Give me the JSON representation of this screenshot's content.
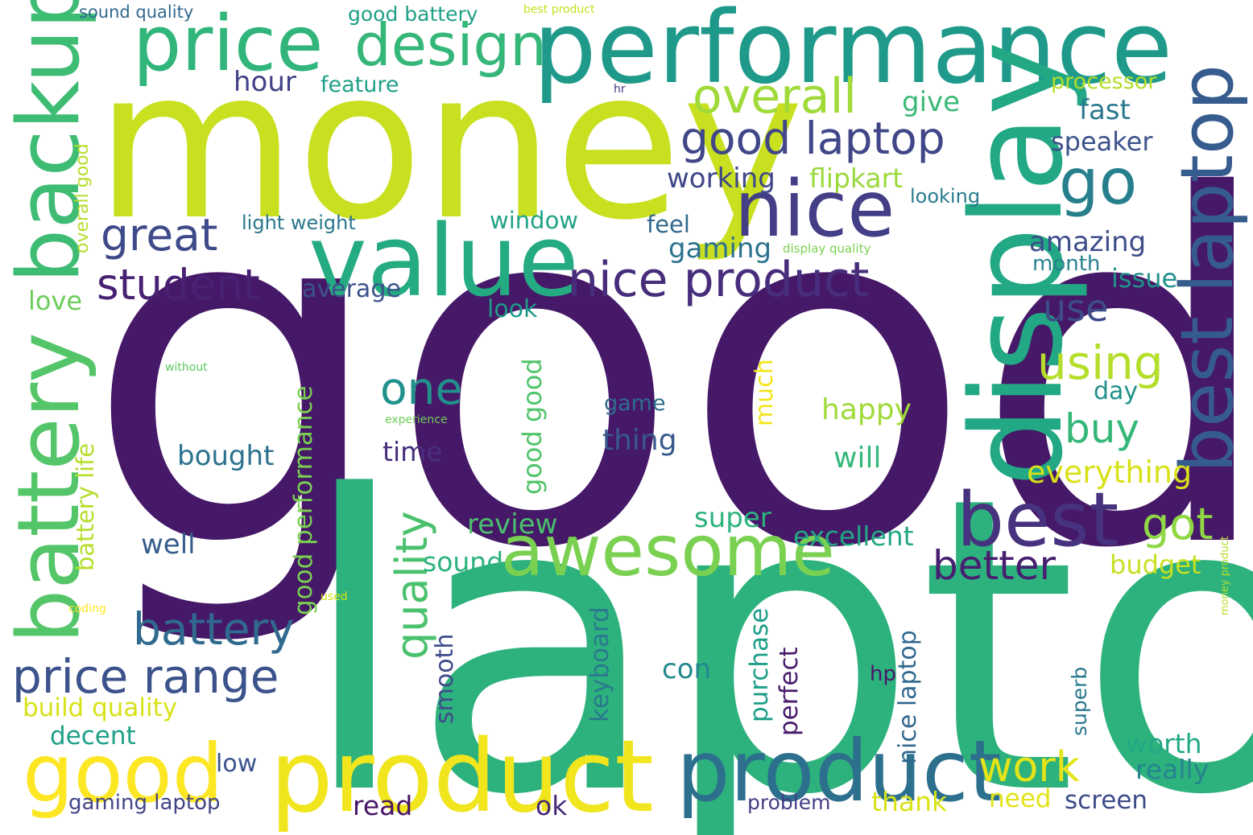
{
  "words": [
    {
      "id": "good",
      "text": "good",
      "color": "#461868",
      "vertical": false
    },
    {
      "id": "laptop",
      "text": "laptop",
      "color": "#2db27d",
      "vertical": false
    },
    {
      "id": "money",
      "text": "money",
      "color": "#c8e020",
      "vertical": false
    },
    {
      "id": "performance",
      "text": "performance",
      "color": "#1f9a8a",
      "vertical": false
    },
    {
      "id": "display",
      "text": "display",
      "color": "#22a884",
      "vertical": true
    },
    {
      "id": "value",
      "text": "value",
      "color": "#25ab82",
      "vertical": false
    },
    {
      "id": "product-large",
      "text": "product",
      "color": "#2d708e",
      "vertical": false
    },
    {
      "id": "product-yellow",
      "text": "product",
      "color": "#f1e51d",
      "vertical": false
    },
    {
      "id": "price",
      "text": "price",
      "color": "#31b57b",
      "vertical": false
    },
    {
      "id": "design",
      "text": "design",
      "color": "#35b779",
      "vertical": false
    },
    {
      "id": "backup",
      "text": "backup",
      "color": "#3fbc73",
      "vertical": true
    },
    {
      "id": "battery-vertical",
      "text": "battery",
      "color": "#54c568",
      "vertical": true
    },
    {
      "id": "best-laptop",
      "text": "best laptop",
      "color": "#365c8d",
      "vertical": true
    },
    {
      "id": "nice",
      "text": "nice",
      "color": "#433e85",
      "vertical": false
    },
    {
      "id": "awesome",
      "text": "awesome",
      "color": "#7ad151",
      "vertical": false
    },
    {
      "id": "best",
      "text": "best",
      "color": "#46327e",
      "vertical": false
    },
    {
      "id": "good-yellow",
      "text": "good",
      "color": "#fde725",
      "vertical": false
    },
    {
      "id": "overall",
      "text": "overall",
      "color": "#a0da39",
      "vertical": false
    },
    {
      "id": "good-laptop",
      "text": "good laptop",
      "color": "#404688",
      "vertical": false
    },
    {
      "id": "go",
      "text": "go",
      "color": "#277f8e",
      "vertical": false
    },
    {
      "id": "nice-product",
      "text": "nice product",
      "color": "#472d7b",
      "vertical": false
    },
    {
      "id": "price-range",
      "text": "price range",
      "color": "#3b528b",
      "vertical": false
    },
    {
      "id": "battery",
      "text": "battery",
      "color": "#306a8e",
      "vertical": false
    },
    {
      "id": "student",
      "text": "student",
      "color": "#482173",
      "vertical": false
    },
    {
      "id": "great",
      "text": "great",
      "color": "#3e4a89",
      "vertical": false
    },
    {
      "id": "one",
      "text": "one",
      "color": "#21918c",
      "vertical": false
    },
    {
      "id": "quality",
      "text": "quality",
      "color": "#4ac16d",
      "vertical": true
    },
    {
      "id": "using",
      "text": "using",
      "color": "#b5de2b",
      "vertical": false
    },
    {
      "id": "use",
      "text": "use",
      "color": "#3e4c8a",
      "vertical": false
    },
    {
      "id": "buy",
      "text": "buy",
      "color": "#35b779",
      "vertical": false
    },
    {
      "id": "got",
      "text": "got",
      "color": "#8fd744",
      "vertical": false
    },
    {
      "id": "better",
      "text": "better",
      "color": "#481f70",
      "vertical": false
    },
    {
      "id": "work",
      "text": "work",
      "color": "#e5e419",
      "vertical": false
    },
    {
      "id": "everything",
      "text": "everything",
      "color": "#d8e219",
      "vertical": false
    },
    {
      "id": "hour",
      "text": "hour",
      "color": "#424086",
      "vertical": false
    },
    {
      "id": "feature",
      "text": "feature",
      "color": "#1fa088",
      "vertical": false
    },
    {
      "id": "give",
      "text": "give",
      "color": "#3aba76",
      "vertical": false
    },
    {
      "id": "fast",
      "text": "fast",
      "color": "#2a788e",
      "vertical": false
    },
    {
      "id": "speaker",
      "text": "speaker",
      "color": "#3b528b",
      "vertical": false
    },
    {
      "id": "processor",
      "text": "processor",
      "color": "#b5de2b",
      "vertical": false
    },
    {
      "id": "working",
      "text": "working",
      "color": "#3f4788",
      "vertical": false
    },
    {
      "id": "flipkart",
      "text": "flipkart",
      "color": "#9bd93c",
      "vertical": false
    },
    {
      "id": "looking",
      "text": "looking",
      "color": "#287d8e",
      "vertical": false
    },
    {
      "id": "window",
      "text": "window",
      "color": "#20a386",
      "vertical": false
    },
    {
      "id": "feel",
      "text": "feel",
      "color": "#31688e",
      "vertical": false
    },
    {
      "id": "gaming",
      "text": "gaming",
      "color": "#2c728e",
      "vertical": false
    },
    {
      "id": "light-weight",
      "text": "light weight",
      "color": "#2a788e",
      "vertical": false
    },
    {
      "id": "display-quality",
      "text": "display quality",
      "color": "#7ad151",
      "vertical": false
    },
    {
      "id": "amazing",
      "text": "amazing",
      "color": "#3d4d8a",
      "vertical": false
    },
    {
      "id": "month",
      "text": "month",
      "color": "#26828e",
      "vertical": false
    },
    {
      "id": "issue",
      "text": "issue",
      "color": "#21918c",
      "vertical": false
    },
    {
      "id": "love",
      "text": "love",
      "color": "#6ccd5a",
      "vertical": false
    },
    {
      "id": "average",
      "text": "average",
      "color": "#3b528b",
      "vertical": false
    },
    {
      "id": "look",
      "text": "look",
      "color": "#1f9a8a",
      "vertical": false
    },
    {
      "id": "day",
      "text": "day",
      "color": "#21918c",
      "vertical": false
    },
    {
      "id": "happy",
      "text": "happy",
      "color": "#a0da39",
      "vertical": false
    },
    {
      "id": "will",
      "text": "will",
      "color": "#35b779",
      "vertical": false
    },
    {
      "id": "game",
      "text": "game",
      "color": "#2f6c8e",
      "vertical": false
    },
    {
      "id": "thing",
      "text": "thing",
      "color": "#38598c",
      "vertical": false
    },
    {
      "id": "time",
      "text": "time",
      "color": "#472f7d",
      "vertical": false
    },
    {
      "id": "bought",
      "text": "bought",
      "color": "#2c728e",
      "vertical": false
    },
    {
      "id": "much",
      "text": "much",
      "color": "#f1e51d",
      "vertical": true
    },
    {
      "id": "good-good",
      "text": "good good",
      "color": "#50c46a",
      "vertical": true
    },
    {
      "id": "good-performance",
      "text": "good performance",
      "color": "#7ad151",
      "vertical": true
    },
    {
      "id": "battery-life",
      "text": "battery life",
      "color": "#b5de2b",
      "vertical": true
    },
    {
      "id": "without",
      "text": "without",
      "color": "#5ec962",
      "vertical": false
    },
    {
      "id": "experience",
      "text": "experience",
      "color": "#6ece58",
      "vertical": false
    },
    {
      "id": "super",
      "text": "super",
      "color": "#2db27d",
      "vertical": false
    },
    {
      "id": "review",
      "text": "review",
      "color": "#4ac16d",
      "vertical": false
    },
    {
      "id": "excellent",
      "text": "excellent",
      "color": "#22a884",
      "vertical": false
    },
    {
      "id": "well",
      "text": "well",
      "color": "#365d8d",
      "vertical": false
    },
    {
      "id": "sound",
      "text": "sound",
      "color": "#2db27d",
      "vertical": false
    },
    {
      "id": "budget",
      "text": "budget",
      "color": "#c8e020",
      "vertical": false
    },
    {
      "id": "smooth",
      "text": "smooth",
      "color": "#3e4a89",
      "vertical": true
    },
    {
      "id": "keyboard",
      "text": "keyboard",
      "color": "#297a8e",
      "vertical": true
    },
    {
      "id": "purchase",
      "text": "purchase",
      "color": "#1f9e89",
      "vertical": true
    },
    {
      "id": "perfect",
      "text": "perfect",
      "color": "#481b6d",
      "vertical": true
    },
    {
      "id": "nice-laptop",
      "text": "nice laptop",
      "color": "#31688e",
      "vertical": true
    },
    {
      "id": "con",
      "text": "con",
      "color": "#23888e",
      "vertical": false
    },
    {
      "id": "hp",
      "text": "hp",
      "color": "#48186a",
      "vertical": false
    },
    {
      "id": "superb",
      "text": "superb",
      "color": "#2a788e",
      "vertical": true
    },
    {
      "id": "worth",
      "text": "worth",
      "color": "#22a884",
      "vertical": false
    },
    {
      "id": "really",
      "text": "really",
      "color": "#25848e",
      "vertical": false
    },
    {
      "id": "build-quality",
      "text": "build quality",
      "color": "#d8e219",
      "vertical": false
    },
    {
      "id": "decent",
      "text": "decent",
      "color": "#1fa088",
      "vertical": false
    },
    {
      "id": "low",
      "text": "low",
      "color": "#3b528b",
      "vertical": false
    },
    {
      "id": "gaming-laptop",
      "text": "gaming laptop",
      "color": "#414487",
      "vertical": false
    },
    {
      "id": "read",
      "text": "read",
      "color": "#481467",
      "vertical": false
    },
    {
      "id": "ok",
      "text": "ok",
      "color": "#472a7a",
      "vertical": false
    },
    {
      "id": "problem",
      "text": "problem",
      "color": "#433e85",
      "vertical": false
    },
    {
      "id": "thank",
      "text": "thank",
      "color": "#d8e219",
      "vertical": false
    },
    {
      "id": "need",
      "text": "need",
      "color": "#e2e418",
      "vertical": false
    },
    {
      "id": "screen",
      "text": "screen",
      "color": "#3e4c8a",
      "vertical": false
    },
    {
      "id": "coding",
      "text": "coding",
      "color": "#fde725",
      "vertical": false
    },
    {
      "id": "used",
      "text": "used",
      "color": "#d8e219",
      "vertical": false
    },
    {
      "id": "money-product",
      "text": "money product",
      "color": "#b5de2b",
      "vertical": true
    },
    {
      "id": "sound-quality",
      "text": "sound quality",
      "color": "#31688e",
      "vertical": false
    },
    {
      "id": "good-battery",
      "text": "good battery",
      "color": "#1fa088",
      "vertical": false
    },
    {
      "id": "best-product",
      "text": "best product",
      "color": "#c8e020",
      "vertical": false
    },
    {
      "id": "hr",
      "text": "hr",
      "color": "#443983",
      "vertical": false
    },
    {
      "id": "overall-good",
      "text": "overall good",
      "color": "#b5de2b",
      "vertical": true
    }
  ]
}
